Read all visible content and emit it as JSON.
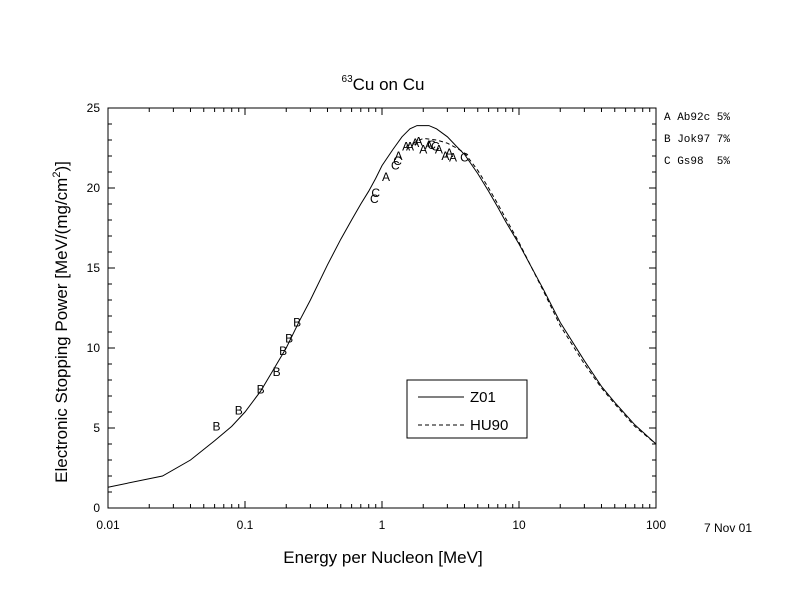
{
  "chart_data": {
    "type": "line",
    "title_superscript": "63",
    "title_text": "Cu on Cu",
    "xlabel": "Energy per Nucleon [MeV]",
    "ylabel_main": "Electronic Stopping Power [MeV/(mg/cm",
    "ylabel_sup": "2",
    "ylabel_end": ")]",
    "x_scale": "log",
    "xlim": [
      0.01,
      100
    ],
    "ylim": [
      0,
      25
    ],
    "x_ticks": [
      {
        "value": 0.01,
        "label": "0.01"
      },
      {
        "value": 0.1,
        "label": "0.1"
      },
      {
        "value": 1,
        "label": "1"
      },
      {
        "value": 10,
        "label": "10"
      },
      {
        "value": 100,
        "label": "100"
      }
    ],
    "y_ticks": [
      {
        "value": 0,
        "label": "0"
      },
      {
        "value": 5,
        "label": "5"
      },
      {
        "value": 10,
        "label": "10"
      },
      {
        "value": 15,
        "label": "15"
      },
      {
        "value": 20,
        "label": "20"
      },
      {
        "value": 25,
        "label": "25"
      }
    ],
    "date_note": "7 Nov 01",
    "legend": {
      "placement": "lower-center",
      "entries": [
        {
          "label": "Z01",
          "style": "solid"
        },
        {
          "label": "HU90",
          "style": "dashed"
        }
      ]
    },
    "side_legend": [
      {
        "text": "A Ab92c 5%"
      },
      {
        "text": "B Jok97 7%"
      },
      {
        "text": "C Gs98  5%"
      }
    ],
    "series": [
      {
        "name": "Z01",
        "style": "solid",
        "x": [
          0.01,
          0.025,
          0.04,
          0.06,
          0.08,
          0.1,
          0.13,
          0.16,
          0.2,
          0.25,
          0.3,
          0.4,
          0.5,
          0.6,
          0.7,
          0.8,
          0.9,
          1.0,
          1.2,
          1.4,
          1.6,
          1.8,
          2.0,
          2.2,
          2.5,
          3.0,
          3.5,
          4.0,
          5.0,
          6.0,
          7.0,
          8.0,
          10,
          15,
          20,
          30,
          40,
          50,
          70,
          100
        ],
        "y": [
          1.3,
          2.0,
          3.0,
          4.2,
          5.1,
          6.0,
          7.3,
          8.6,
          10.0,
          11.7,
          13.0,
          15.2,
          16.8,
          18.0,
          19.0,
          19.8,
          20.6,
          21.4,
          22.4,
          23.2,
          23.7,
          23.9,
          23.9,
          23.9,
          23.7,
          23.2,
          22.6,
          22.1,
          20.9,
          19.8,
          18.8,
          17.9,
          16.5,
          13.7,
          11.6,
          9.2,
          7.6,
          6.6,
          5.2,
          4.0
        ]
      },
      {
        "name": "HU90",
        "style": "dashed",
        "x": [
          1.5,
          2.0,
          2.5,
          3.0,
          3.5,
          4.0,
          5.0,
          6.0,
          7.0,
          8.0,
          10,
          15,
          20,
          30,
          40,
          50,
          70,
          100
        ],
        "y": [
          22.6,
          23.1,
          23.0,
          22.8,
          22.5,
          22.2,
          21.1,
          20.0,
          19.0,
          18.1,
          16.6,
          13.6,
          11.4,
          9.0,
          7.5,
          6.5,
          5.1,
          4.0
        ]
      }
    ],
    "data_points": [
      {
        "label": "B",
        "x": 0.062,
        "y": 5.1
      },
      {
        "label": "B",
        "x": 0.09,
        "y": 6.1
      },
      {
        "label": "B",
        "x": 0.13,
        "y": 7.4
      },
      {
        "label": "B",
        "x": 0.17,
        "y": 8.5
      },
      {
        "label": "B",
        "x": 0.19,
        "y": 9.8
      },
      {
        "label": "B",
        "x": 0.21,
        "y": 10.6
      },
      {
        "label": "B",
        "x": 0.24,
        "y": 11.6
      },
      {
        "label": "C",
        "x": 0.88,
        "y": 19.3
      },
      {
        "label": "C",
        "x": 0.9,
        "y": 19.7
      },
      {
        "label": "A",
        "x": 1.07,
        "y": 20.7
      },
      {
        "label": "C",
        "x": 1.25,
        "y": 21.4
      },
      {
        "label": "C",
        "x": 1.3,
        "y": 21.7
      },
      {
        "label": "A",
        "x": 1.32,
        "y": 22.0
      },
      {
        "label": "A",
        "x": 1.5,
        "y": 22.6
      },
      {
        "label": "A",
        "x": 1.6,
        "y": 22.6
      },
      {
        "label": "A",
        "x": 1.75,
        "y": 22.8
      },
      {
        "label": "A",
        "x": 1.85,
        "y": 22.9
      },
      {
        "label": "A",
        "x": 2.0,
        "y": 22.4
      },
      {
        "label": "A",
        "x": 2.2,
        "y": 22.7
      },
      {
        "label": "C",
        "x": 2.3,
        "y": 22.7
      },
      {
        "label": "C",
        "x": 2.45,
        "y": 22.6
      },
      {
        "label": "A",
        "x": 2.6,
        "y": 22.4
      },
      {
        "label": "A",
        "x": 2.9,
        "y": 22.0
      },
      {
        "label": "A",
        "x": 3.1,
        "y": 22.2
      },
      {
        "label": "A",
        "x": 3.3,
        "y": 21.9
      },
      {
        "label": "C",
        "x": 4.0,
        "y": 21.9
      }
    ]
  }
}
